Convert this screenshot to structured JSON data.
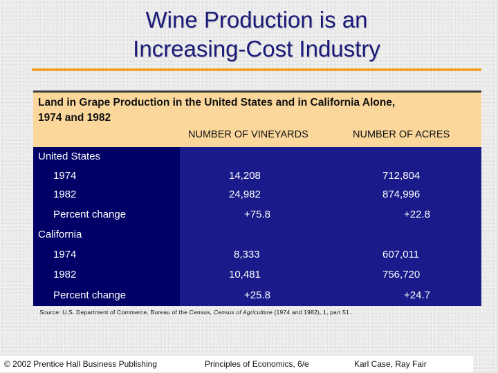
{
  "slide": {
    "title_line1": "Wine Production is an",
    "title_line2": "Increasing-Cost Industry"
  },
  "table": {
    "caption_line1": "Land in Grape Production in the United States and in California Alone,",
    "caption_line2": "1974 and 1982",
    "columns": [
      "NUMBER OF VINEYARDS",
      "NUMBER OF ACRES"
    ],
    "groups": [
      {
        "name": "United States",
        "rows": [
          {
            "label": "1974",
            "vineyards": "14,208",
            "acres": "712,804"
          },
          {
            "label": "1982",
            "vineyards": "24,982",
            "acres": "874,996"
          },
          {
            "label": "Percent change",
            "vineyards": "+75.8",
            "acres": "+22.8"
          }
        ]
      },
      {
        "name": "California",
        "rows": [
          {
            "label": "1974",
            "vineyards": "8,333",
            "acres": "607,011"
          },
          {
            "label": "1982",
            "vineyards": "10,481",
            "acres": "756,720"
          },
          {
            "label": "Percent change",
            "vineyards": "+25.8",
            "acres": "+24.7"
          }
        ]
      }
    ]
  },
  "source": {
    "label": "Source:",
    "text_before": "U.S. Department of Commerce, Bureau of the Census,",
    "publication": "Census of Agriculture",
    "text_after": "(1974 and 1982), 1, part 51."
  },
  "footer": {
    "copyright": "© 2002 Prentice Hall Business Publishing",
    "book": "Principles of Economics, 6/e",
    "authors": "Karl Case, Ray Fair"
  },
  "colors": {
    "title": "#1a1a7a",
    "accent_rule": "#f2a32e",
    "header_band": "#fbd79b",
    "table_body": "#1a1a8a",
    "table_stub": "#000066"
  }
}
